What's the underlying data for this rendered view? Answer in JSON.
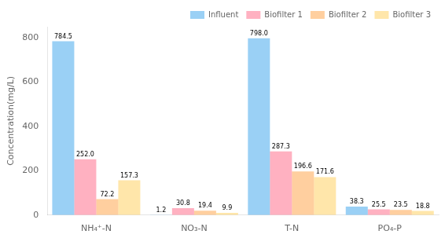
{
  "chart_data": {
    "type": "bar",
    "categories": [
      "NH₄⁺-N",
      "NO₃-N",
      "T-N",
      "PO₄-P"
    ],
    "series": [
      {
        "name": "Influent",
        "values": [
          784.5,
          1.2,
          798.0,
          38.3
        ],
        "value_labels": [
          "784.5",
          "1.2",
          "798.0",
          "38.3"
        ]
      },
      {
        "name": "Biofilter 1",
        "values": [
          252.0,
          30.8,
          287.3,
          25.5
        ],
        "value_labels": [
          "252.0",
          "30.8",
          "287.3",
          "25.5"
        ]
      },
      {
        "name": "Biofilter 2",
        "values": [
          72.2,
          19.4,
          196.6,
          23.5
        ],
        "value_labels": [
          "72.2",
          "19.4",
          "196.6",
          "23.5"
        ]
      },
      {
        "name": "Biofilter 3",
        "values": [
          157.3,
          9.9,
          171.6,
          18.8
        ],
        "value_labels": [
          "157.3",
          "9.9",
          "171.6",
          "18.8"
        ]
      }
    ],
    "ylabel": "Concentration(mg/L)",
    "ylim": [
      0,
      850
    ],
    "yticks": [
      0,
      200,
      400,
      600,
      800
    ],
    "grid": false,
    "legend": "upper right",
    "data_labels": true
  }
}
